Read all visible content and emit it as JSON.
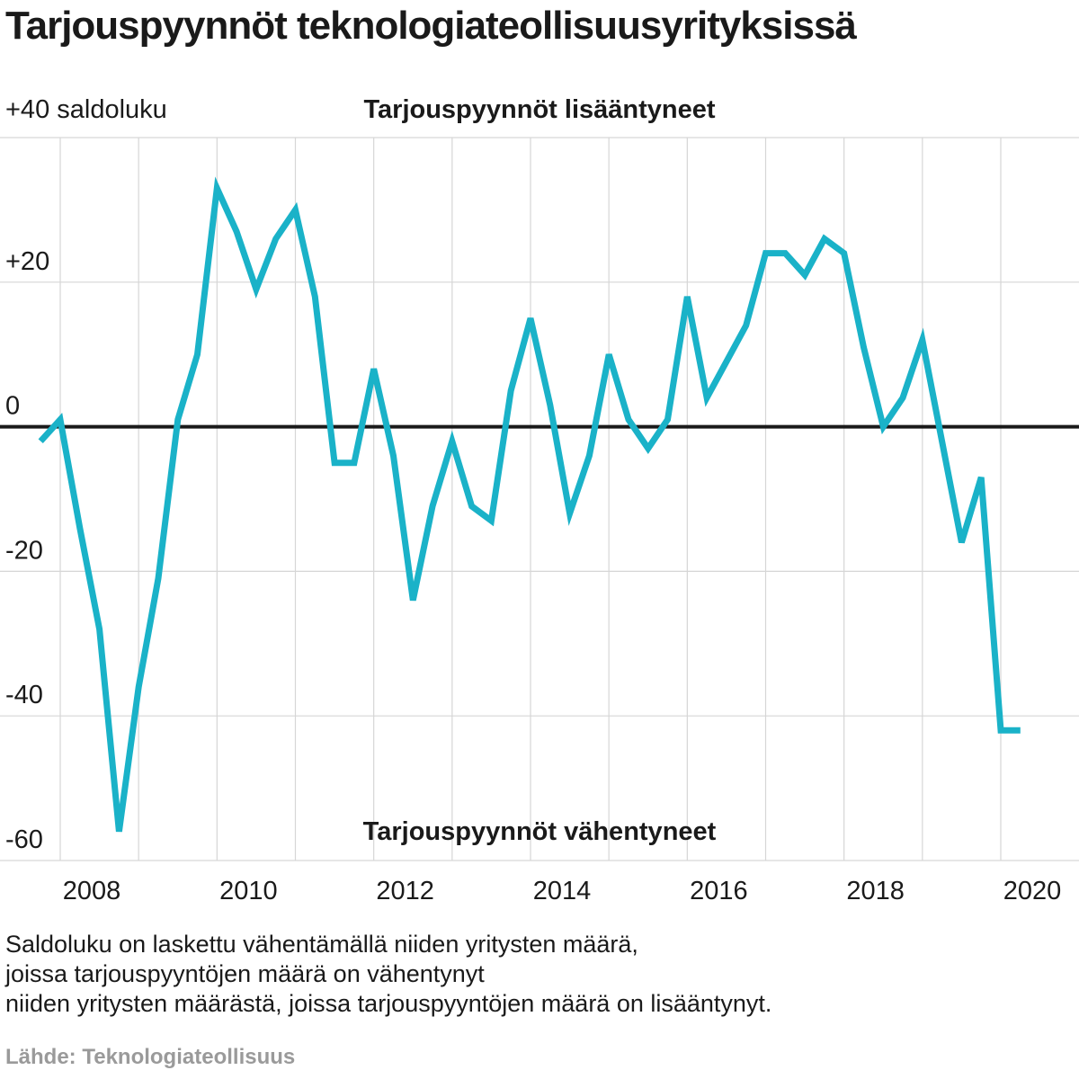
{
  "title": "Tarjouspyynnöt teknologiateollisuusyrityksissä",
  "footnote_lines": [
    "Saldoluku on laskettu vähentämällä niiden yritysten määrä,",
    "joissa tarjouspyyntöjen määrä on vähentynyt",
    "niiden yritysten määrästä, joissa tarjouspyyntöjen määrä on lisääntynyt."
  ],
  "source": "Lähde: Teknologiateollisuus",
  "colors": {
    "line": "#1ab2c8",
    "zero_line": "#1a1a1a",
    "grid": "#d6d6d6",
    "source_text": "#9a9a9a"
  },
  "chart_data": {
    "type": "line",
    "title": "Tarjouspyynnöt teknologiateollisuusyrityksissä",
    "ylabel": "+40 saldoluku",
    "top_annotation": "Tarjouspyynnöt lisääntyneet",
    "bottom_annotation": "Tarjouspyynnöt vähentyneet",
    "ylim": [
      -60,
      40
    ],
    "xlim": [
      2007.6,
      2021.0
    ],
    "y_ticks": [
      {
        "value": 20,
        "label": "+20"
      },
      {
        "value": 0,
        "label": "0"
      },
      {
        "value": -20,
        "label": "-20"
      },
      {
        "value": -40,
        "label": "-40"
      },
      {
        "value": -60,
        "label": "-60"
      }
    ],
    "x_tick_labels": [
      "2008",
      "2010",
      "2012",
      "2014",
      "2016",
      "2018",
      "2020"
    ],
    "x_ticks": [
      2008,
      2010,
      2012,
      2014,
      2016,
      2018,
      2020
    ],
    "grid": true,
    "series": [
      {
        "x": [
          2007.75,
          2008.0,
          2008.25,
          2008.5,
          2008.75,
          2009.0,
          2009.25,
          2009.5,
          2009.75,
          2010.0,
          2010.25,
          2010.5,
          2010.75,
          2011.0,
          2011.25,
          2011.5,
          2011.75,
          2012.0,
          2012.25,
          2012.5,
          2012.75,
          2013.0,
          2013.25,
          2013.5,
          2013.75,
          2014.0,
          2014.25,
          2014.5,
          2014.75,
          2015.0,
          2015.25,
          2015.5,
          2015.75,
          2016.0,
          2016.25,
          2016.5,
          2016.75,
          2017.0,
          2017.25,
          2017.5,
          2017.75,
          2018.0,
          2018.25,
          2018.5,
          2018.75,
          2019.0,
          2019.25,
          2019.5,
          2019.75,
          2020.0,
          2020.25
        ],
        "values": [
          -2,
          1,
          -14,
          -28,
          -56,
          -36,
          -21,
          1,
          10,
          33,
          27,
          19,
          26,
          30,
          18,
          -5,
          -5,
          8,
          -4,
          -24,
          -11,
          -2,
          -11,
          -13,
          5,
          15,
          3,
          -12,
          -4,
          10,
          1,
          -3,
          1,
          18,
          4,
          9,
          14,
          24,
          24,
          21,
          26,
          24,
          11,
          0,
          4,
          12,
          -2,
          -16,
          -7,
          -42,
          -42
        ]
      }
    ]
  }
}
